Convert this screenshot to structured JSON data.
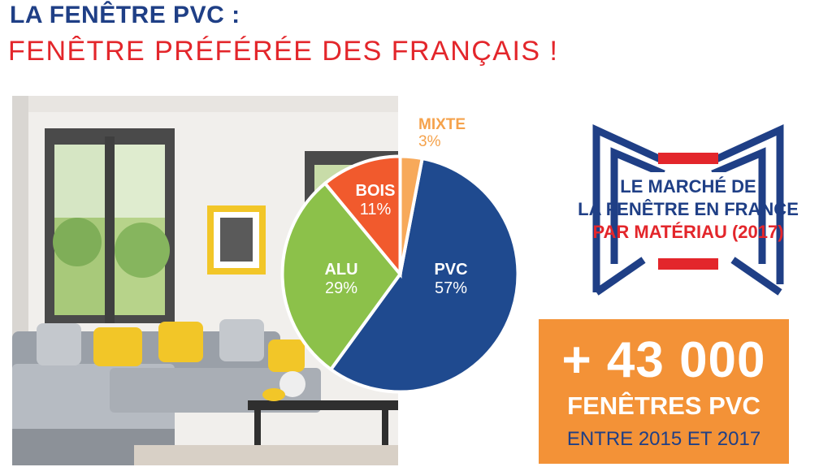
{
  "header": {
    "title_line1": "LA FENÊTRE PVC :",
    "title_line2": "FENÊTRE PRÉFÉRÉE DES FRANÇAIS !"
  },
  "chart_data": {
    "type": "pie",
    "title": "",
    "categories": [
      "PVC",
      "ALU",
      "BOIS",
      "MIXTE"
    ],
    "values": [
      57,
      29,
      11,
      3
    ],
    "labels": [
      "57%",
      "29%",
      "11%",
      "3%"
    ],
    "colors": [
      "#1f4a8f",
      "#8cc14a",
      "#f15a2d",
      "#f7a95a"
    ]
  },
  "badge": {
    "line1": "LE MARCHÉ DE",
    "line2": "LA FENÊTRE EN FRANCE",
    "line3": "PAR MATÉRIAU (2017)"
  },
  "highlight": {
    "number": "+ 43 000",
    "label": "FENÊTRES PVC",
    "period": "ENTRE 2015 ET 2017"
  },
  "colors": {
    "navy": "#1f3f86",
    "red": "#e3262b",
    "orange": "#f39237"
  },
  "icons": {
    "photo": "living-room-photo",
    "badge": "window-badge-icon"
  }
}
